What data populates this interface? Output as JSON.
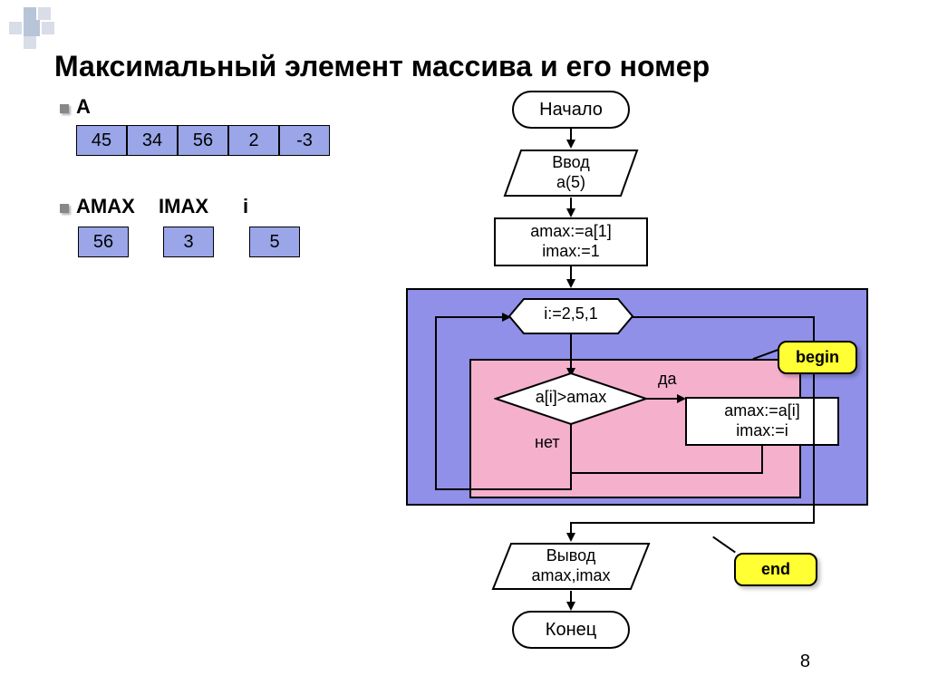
{
  "title": "Максимальный элемент массива и его номер",
  "page_number": "8",
  "colors": {
    "cell_fill": "#9aa6e8",
    "loop_outer_fill": "#9090e8",
    "loop_inner_fill": "#f5b0cc",
    "callout_fill": "#ffff33",
    "white": "#ffffff"
  },
  "array": {
    "label": "A",
    "values": [
      "45",
      "34",
      "56",
      "2",
      "-3"
    ]
  },
  "vars": {
    "labels": [
      "AMAX",
      "IMAX",
      "i"
    ],
    "values": [
      "56",
      "3",
      "5"
    ]
  },
  "flow": {
    "start": "Начало",
    "input": "Ввод\na(5)",
    "init": "amax:=a[1]\nimax:=1",
    "loop": "i:=2,5,1",
    "cond": "a[i]>amax",
    "yes": "да",
    "no": "нет",
    "assign": "amax:=a[i]\nimax:=i",
    "output": "Вывод\namax,imax",
    "end": "Конец",
    "begin_tag": "begin",
    "end_tag": "end"
  }
}
